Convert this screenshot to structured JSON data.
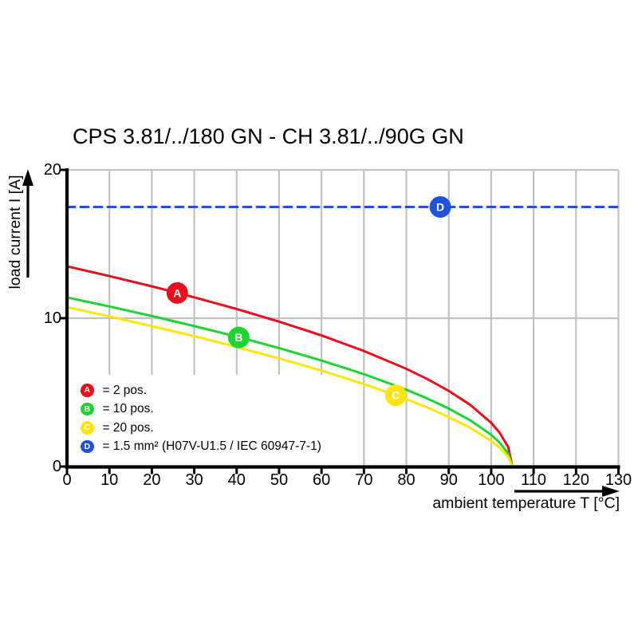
{
  "title": "CPS 3.81/../180 GN - CH 3.81/../90G GN",
  "colors": {
    "red": "#e8101c",
    "green": "#21d331",
    "yellow": "#ffe50c",
    "blue": "#1f51dd",
    "grid": "#c2c2c2",
    "axis": "#000000",
    "background": "#ffffff",
    "marker_text": "#ffffff"
  },
  "chart_data": {
    "type": "line",
    "title": "CPS 3.81/../180 GN - CH 3.81/../90G GN",
    "xlabel": "ambient temperature T [°C]",
    "ylabel": "load current I [A]",
    "xlim": [
      0,
      130
    ],
    "ylim": [
      0,
      20
    ],
    "x_ticks": [
      0,
      10,
      20,
      30,
      40,
      50,
      60,
      70,
      80,
      90,
      100,
      110,
      120,
      130
    ],
    "y_ticks": [
      0,
      10,
      20
    ],
    "grid": "vertical lines every 10 °C, horizontal lines every 10 A, legend box masks grid bottom-left",
    "legend_position": "bottom-left inside plot",
    "series": [
      {
        "id": "A",
        "name": "2 pos.",
        "color_key": "red",
        "style": "solid",
        "x": [
          0,
          10,
          20,
          30,
          40,
          50,
          60,
          70,
          80,
          85,
          90,
          95,
          100,
          102,
          104,
          105
        ],
        "y": [
          13.5,
          12.84,
          12.15,
          11.41,
          10.62,
          9.77,
          8.84,
          7.79,
          6.59,
          5.89,
          5.1,
          4.17,
          2.95,
          2.28,
          1.32,
          0
        ]
      },
      {
        "id": "B",
        "name": "10 pos.",
        "color_key": "green",
        "style": "solid",
        "x": [
          0,
          10,
          20,
          30,
          40,
          50,
          60,
          70,
          80,
          85,
          90,
          95,
          100,
          102,
          104,
          105
        ],
        "y": [
          11.4,
          10.79,
          10.15,
          9.47,
          8.76,
          7.99,
          7.15,
          6.23,
          5.18,
          4.58,
          3.91,
          3.13,
          2.14,
          1.61,
          0.88,
          0
        ]
      },
      {
        "id": "C",
        "name": "20 pos.",
        "color_key": "yellow",
        "style": "solid",
        "x": [
          0,
          10,
          20,
          30,
          40,
          50,
          60,
          70,
          80,
          85,
          90,
          95,
          100,
          102,
          104,
          105
        ],
        "y": [
          10.75,
          10.12,
          9.47,
          8.79,
          8.06,
          7.29,
          6.47,
          5.56,
          4.54,
          3.98,
          3.34,
          2.62,
          1.73,
          1.27,
          0.66,
          0
        ]
      },
      {
        "id": "D",
        "name": "1.5 mm² (H07V-U1.5 / IEC 60947-7-1)",
        "color_key": "blue",
        "style": "dashed",
        "x": [
          0,
          130
        ],
        "y": [
          17.5,
          17.5
        ]
      }
    ],
    "markers": [
      {
        "letter": "A",
        "t": 26,
        "i": 11.7,
        "color_key": "red"
      },
      {
        "letter": "B",
        "t": 40.5,
        "i": 8.7,
        "color_key": "green"
      },
      {
        "letter": "C",
        "t": 77.5,
        "i": 4.8,
        "color_key": "yellow"
      },
      {
        "letter": "D",
        "t": 88,
        "i": 17.5,
        "color_key": "blue"
      }
    ]
  },
  "legend": {
    "items": [
      {
        "letter": "A",
        "label": "= 2 pos.",
        "color_key": "red"
      },
      {
        "letter": "B",
        "label": "= 10 pos.",
        "color_key": "green"
      },
      {
        "letter": "C",
        "label": "= 20 pos.",
        "color_key": "yellow"
      },
      {
        "letter": "D",
        "label": "= 1.5 mm² (H07V-U1.5 / IEC 60947-7-1)",
        "color_key": "blue"
      }
    ]
  }
}
